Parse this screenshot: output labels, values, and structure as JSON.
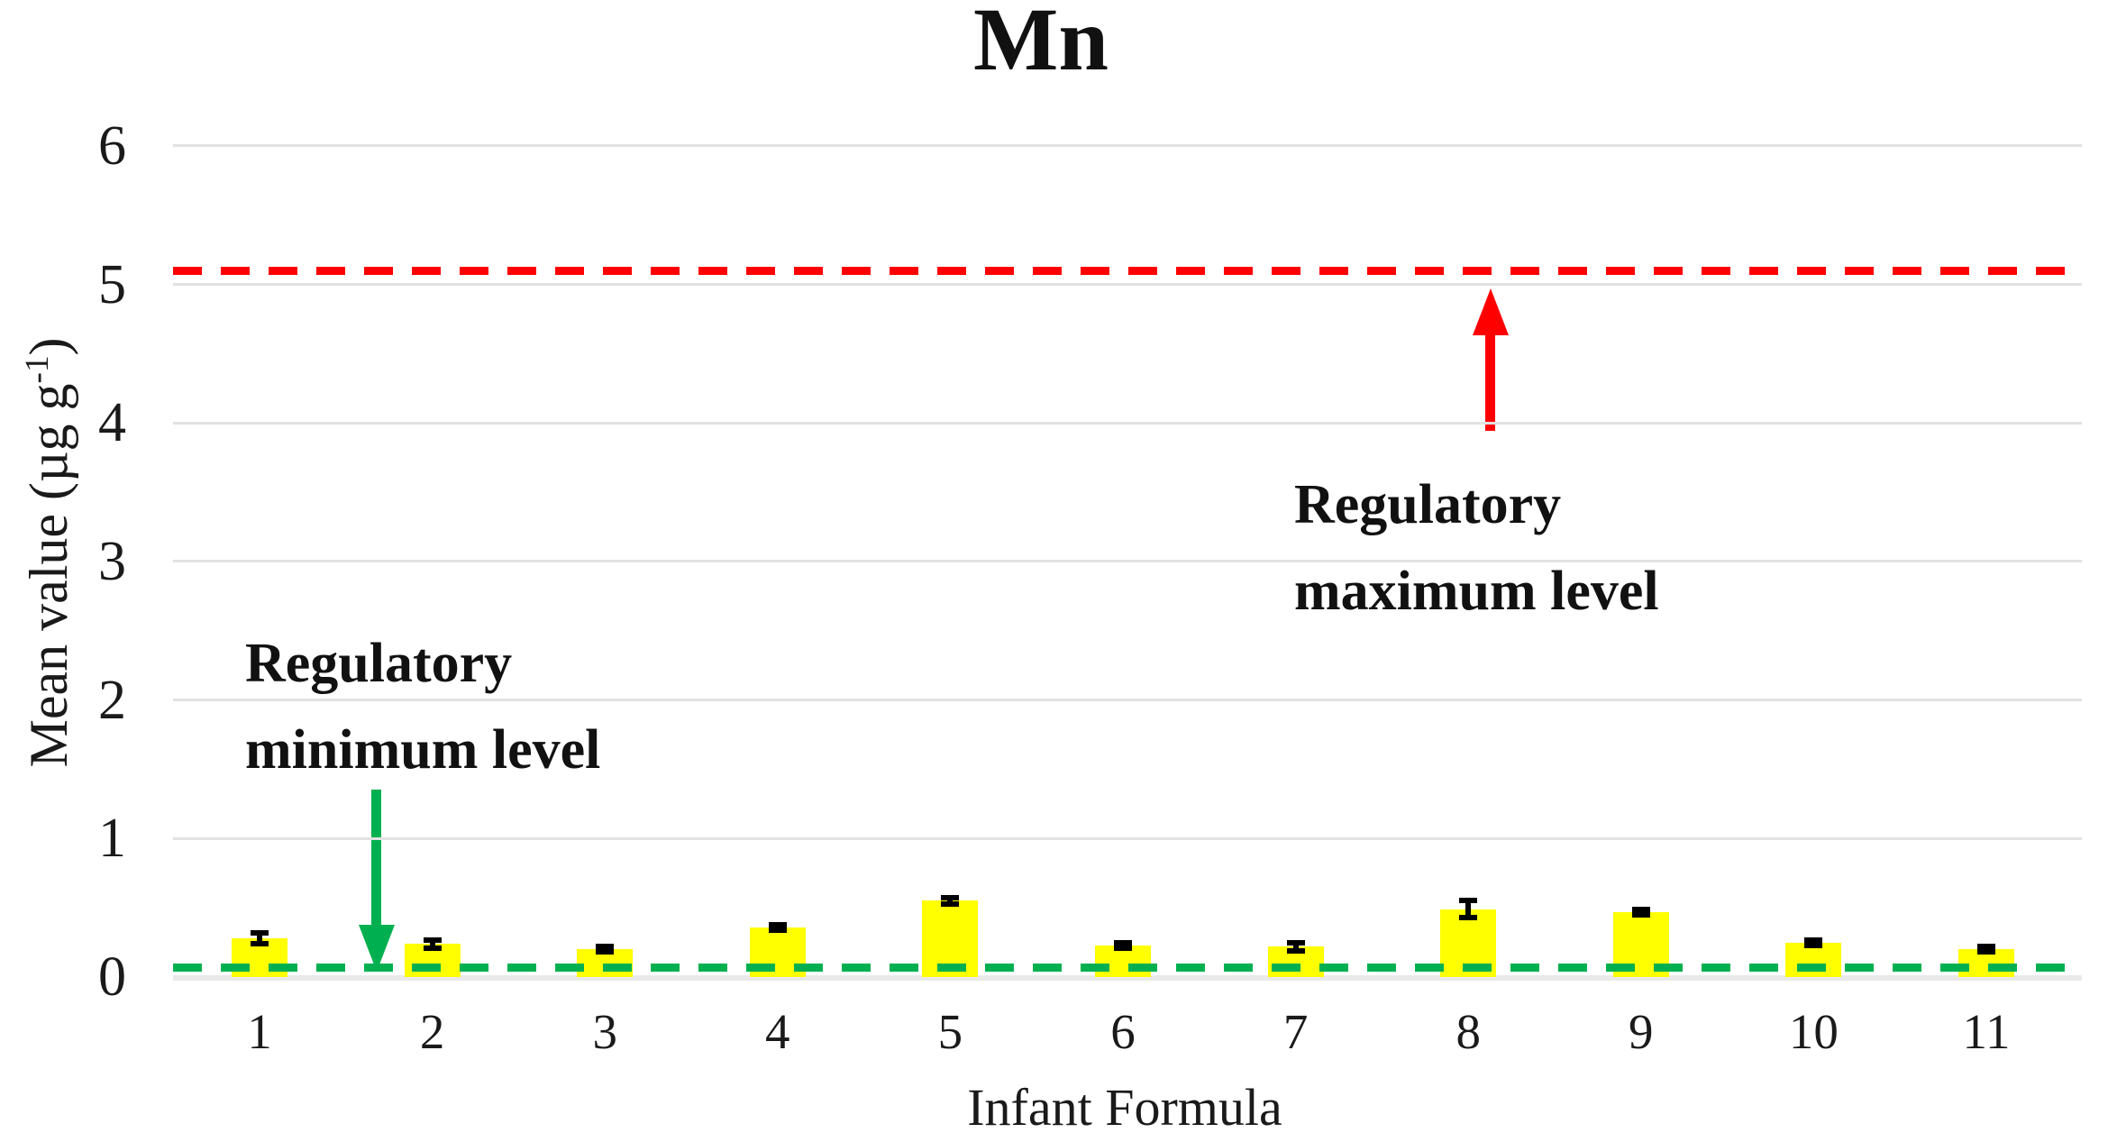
{
  "chart_data": {
    "type": "bar",
    "title": "Mn",
    "xlabel": "Infant Formula",
    "ylabel": "Mean value (µg g-1)",
    "ylabel_pre": "Mean value (µg g",
    "ylabel_sup": "-1",
    "ylabel_post": ")",
    "categories": [
      "1",
      "2",
      "3",
      "4",
      "5",
      "6",
      "7",
      "8",
      "9",
      "10",
      "11"
    ],
    "values": [
      0.28,
      0.24,
      0.2,
      0.36,
      0.55,
      0.23,
      0.22,
      0.49,
      0.47,
      0.25,
      0.2
    ],
    "error_bars": [
      0.04,
      0.03,
      0.02,
      0.02,
      0.02,
      0.02,
      0.03,
      0.06,
      0.02,
      0.02,
      0.02
    ],
    "ylim": [
      0,
      6
    ],
    "yticks": [
      "0",
      "1",
      "2",
      "3",
      "4",
      "5",
      "6"
    ],
    "grid": true,
    "legend": "none",
    "bar_color": "#FFFF00",
    "error_color": "#000000",
    "gridline_color": "#E2E2E2",
    "reference_lines": [
      {
        "id": "max",
        "label_line1": "Regulatory",
        "label_line2": "maximum level",
        "value": 5.1,
        "color": "#FF0000",
        "style": "dashed",
        "arrow": "up"
      },
      {
        "id": "min",
        "label_line1": "Regulatory",
        "label_line2": "minimum level",
        "value": 0.07,
        "color": "#00B050",
        "style": "dashed",
        "arrow": "down"
      }
    ]
  }
}
